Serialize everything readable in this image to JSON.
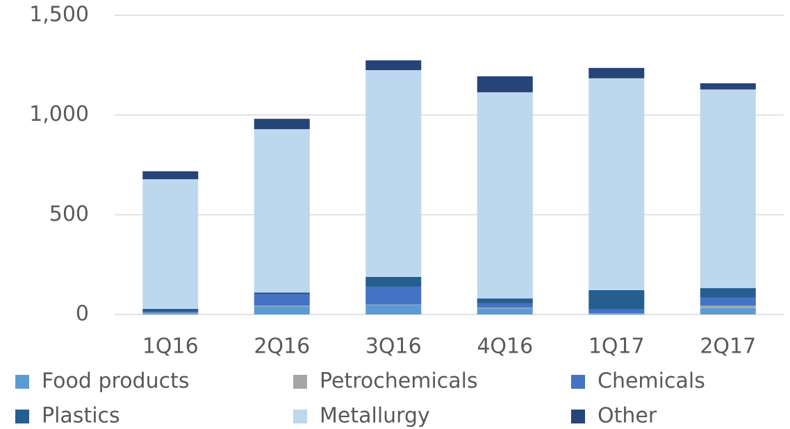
{
  "chart_data": {
    "type": "stacked_bar",
    "categories": [
      "1Q16",
      "2Q16",
      "3Q16",
      "4Q16",
      "1Q17",
      "2Q17"
    ],
    "series": [
      {
        "name": "Food products",
        "color": "#5b9bd5",
        "values": [
          5,
          40,
          48,
          30,
          5,
          32
        ]
      },
      {
        "name": "Petrochemicals",
        "color": "#a5a5a5",
        "values": [
          3,
          5,
          2,
          5,
          2,
          12
        ]
      },
      {
        "name": "Chemicals",
        "color": "#4472c4",
        "values": [
          5,
          55,
          89,
          21,
          18,
          40
        ]
      },
      {
        "name": "Plastics",
        "color": "#255e91",
        "values": [
          15,
          10,
          49,
          24,
          97,
          48
        ]
      },
      {
        "name": "Metallurgy",
        "color": "#bdd7ee",
        "values": [
          650,
          819,
          1037,
          1034,
          1062,
          996
        ]
      },
      {
        "name": "Other",
        "color": "#264478",
        "values": [
          40,
          52,
          49,
          80,
          52,
          31
        ]
      }
    ],
    "ylim": [
      0,
      1500
    ],
    "yticks": [
      0,
      500,
      {
        "value": 1000,
        "label": "1,000"
      },
      {
        "value": 1500,
        "label": "1,500"
      }
    ],
    "grid": true,
    "legend": "bottom"
  }
}
